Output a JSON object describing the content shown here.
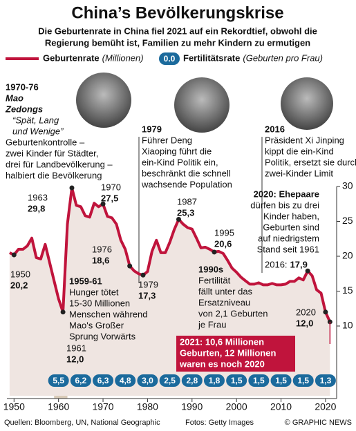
{
  "chart_data": {
    "type": "line",
    "title": "China’s Bevölkerungskrise",
    "subtitle": [
      "Die Geburtenrate in China fiel 2021 auf ein Rekordtief, obwohl die",
      "Regierung bemüht ist, Familien zu mehr Kindern zu ermutigen"
    ],
    "xlim": [
      1948.4,
      2022.5
    ],
    "xticks": [
      1950,
      1960,
      1970,
      1980,
      1990,
      2000,
      2010,
      2020
    ],
    "ylim": [
      0,
      30
    ],
    "yticks": [
      10,
      15,
      20,
      25,
      30
    ],
    "famine_span": [
      1959,
      1962
    ],
    "series": [
      {
        "name": "Geburtenrate",
        "unit": "(Millionen)",
        "color": "#c0143c",
        "x": [
          1949,
          1950,
          1951,
          1952,
          1953,
          1954,
          1955,
          1956,
          1957,
          1958,
          1959,
          1960,
          1961,
          1962,
          1963,
          1964,
          1965,
          1966,
          1967,
          1968,
          1969,
          1970,
          1971,
          1972,
          1973,
          1974,
          1975,
          1976,
          1977,
          1978,
          1979,
          1980,
          1981,
          1982,
          1983,
          1984,
          1985,
          1986,
          1987,
          1988,
          1989,
          1990,
          1991,
          1992,
          1993,
          1994,
          1995,
          1996,
          1997,
          1998,
          1999,
          2000,
          2001,
          2002,
          2003,
          2004,
          2005,
          2006,
          2007,
          2008,
          2009,
          2010,
          2011,
          2012,
          2013,
          2014,
          2015,
          2016,
          2017,
          2018,
          2019,
          2020,
          2021
        ],
        "values": [
          20.5,
          20.2,
          21.0,
          21.0,
          21.5,
          22.6,
          19.8,
          19.6,
          21.7,
          19.1,
          16.5,
          13.9,
          12.0,
          24.6,
          29.8,
          27.3,
          27.1,
          25.8,
          25.6,
          27.6,
          27.1,
          27.5,
          25.7,
          25.5,
          24.6,
          22.3,
          21.0,
          18.6,
          17.9,
          17.5,
          17.3,
          17.8,
          20.7,
          22.3,
          20.5,
          20.5,
          22.0,
          23.8,
          25.3,
          24.6,
          24.1,
          23.9,
          22.6,
          21.2,
          21.3,
          21.0,
          20.6,
          20.7,
          20.4,
          19.4,
          18.3,
          17.7,
          17.0,
          16.5,
          16.0,
          16.0,
          16.2,
          15.9,
          15.9,
          16.1,
          15.9,
          15.9,
          16.0,
          16.4,
          16.4,
          16.9,
          16.6,
          17.9,
          17.2,
          15.2,
          14.7,
          12.0,
          10.6
        ]
      },
      {
        "name": "Fertilitätsrate",
        "unit": "(Geburten pro Frau)",
        "color": "#1b6a9c",
        "legend_symbol": "0.0",
        "x": [
          1960,
          1965,
          1970,
          1975,
          1980,
          1985,
          1990,
          1995,
          2000,
          2005,
          2010,
          2015,
          2020
        ],
        "values": [
          5.5,
          6.2,
          6.3,
          4.8,
          3.0,
          2.5,
          2.8,
          1.8,
          1.5,
          1.5,
          1.5,
          1.5,
          1.3
        ],
        "value_labels": [
          "5,5",
          "6,2",
          "6,3",
          "4,8",
          "3,0",
          "2,5",
          "2,8",
          "1,8",
          "1,5",
          "1,5",
          "1,5",
          "1,5",
          "1,3"
        ]
      }
    ],
    "point_labels": [
      {
        "year": "1950",
        "value": "20,2"
      },
      {
        "year": "1963",
        "value": "29,8"
      },
      {
        "year": "1970",
        "value": "27,5"
      },
      {
        "year": "1976",
        "value": "18,6"
      },
      {
        "year": "1979",
        "value": "17,3"
      },
      {
        "year": "1987",
        "value": "25,3"
      },
      {
        "year": "1995",
        "value": "20,6"
      },
      {
        "year": "2016:",
        "value": "17,9"
      },
      {
        "year": "2020",
        "value": "12,0"
      },
      {
        "year": "1961",
        "value": "12,0"
      }
    ],
    "annotations": {
      "mao": [
        "1970-76",
        "Mao",
        "Zedongs",
        "“Spät, Lang",
        "und Wenige”",
        "Geburtenkontrolle –",
        "zwei Kinder für Städter,",
        "drei für Landbevölkerung –",
        "halbiert die Bevölkerung"
      ],
      "deng": [
        "1979",
        "Führer Deng",
        "Xiaoping führt die",
        "ein-Kind Politik ein,",
        "beschränkt die schnell",
        "wachsende Population"
      ],
      "xi": [
        "2016",
        "Präsident Xi Jinping",
        "kippt die ein-Kind",
        "Politik, ersetzt sie durch",
        "zwei-Kinder Limit"
      ],
      "policy2020": [
        "2020: Ehepaare",
        "dürfen bis zu drei",
        "Kinder haben,",
        "Geburten sind",
        "auf niedrigstem",
        "Stand seit 1961"
      ],
      "famine": [
        "1959-61",
        "Hunger tötet",
        "15-30 Millionen",
        "Menschen während",
        "Mao's Großer",
        "Sprung Vorwärts"
      ],
      "nineties": [
        "1990s",
        "Fertilität",
        "fällt unter das",
        "Ersatzniveau",
        "von 2,1 Geburten",
        "je Frau"
      ]
    },
    "callout": [
      "2021: 10,6 Millionen",
      "Geburten, 12 Millionen",
      "waren es noch 2020"
    ],
    "footer": {
      "sources": "Quellen: Bloomberg, UN, National Geographic",
      "photos": "Fotos: Getty Images",
      "credit": "© GRAPHIC NEWS"
    }
  }
}
